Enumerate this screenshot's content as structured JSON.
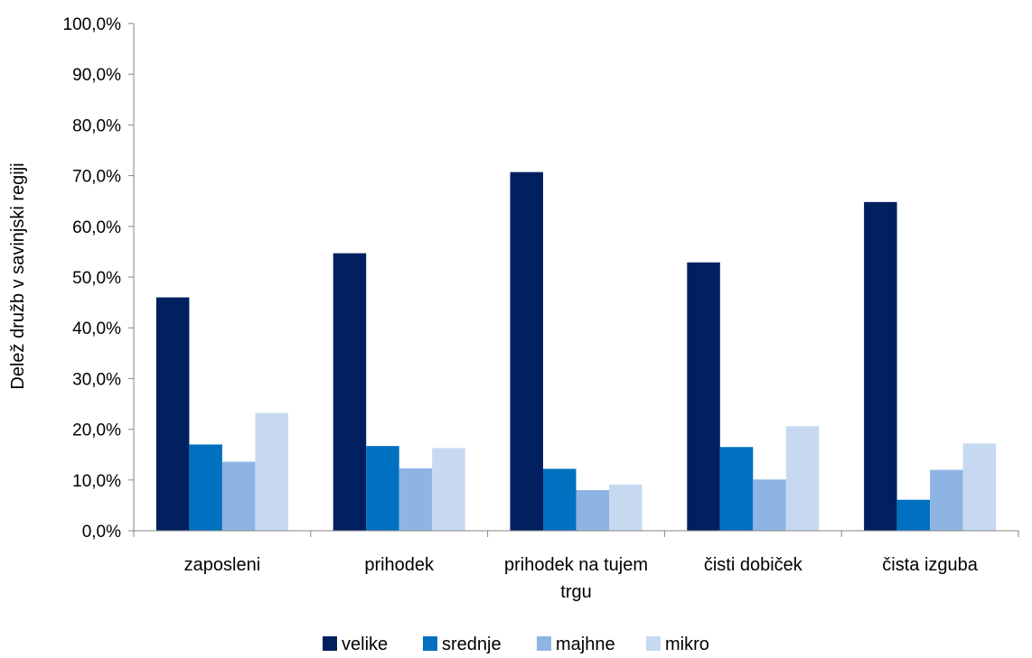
{
  "chart_data": {
    "type": "bar",
    "categories": [
      "zaposleni",
      "prihodek",
      "prihodek na tujem trgu",
      "čisti  dobiček",
      "čista izguba"
    ],
    "category_label_lines": [
      [
        "zaposleni"
      ],
      [
        "prihodek"
      ],
      [
        "prihodek na tujem",
        "trgu"
      ],
      [
        "čisti  dobiček"
      ],
      [
        "čista izguba"
      ]
    ],
    "series": [
      {
        "name": "velike",
        "color": "#002060",
        "values": [
          46.0,
          54.7,
          70.7,
          52.9,
          64.8
        ]
      },
      {
        "name": "srednje",
        "color": "#0070C0",
        "values": [
          17.0,
          16.7,
          12.2,
          16.5,
          6.1
        ]
      },
      {
        "name": "majhne",
        "color": "#8EB4E3",
        "values": [
          13.6,
          12.3,
          8.0,
          10.1,
          12.0
        ]
      },
      {
        "name": "mikro",
        "color": "#C6D9F1",
        "values": [
          23.2,
          16.3,
          9.1,
          20.6,
          17.2
        ]
      }
    ],
    "ylabel": "Delež družb v savinjski regiji",
    "xlabel": "",
    "ylim": [
      0,
      100
    ],
    "ytick_step": 10,
    "ytick_labels": [
      "0,0%",
      "10,0%",
      "20,0%",
      "30,0%",
      "40,0%",
      "50,0%",
      "60,0%",
      "70,0%",
      "80,0%",
      "90,0%",
      "100,0%"
    ],
    "grid": false,
    "legend_position": "bottom"
  }
}
